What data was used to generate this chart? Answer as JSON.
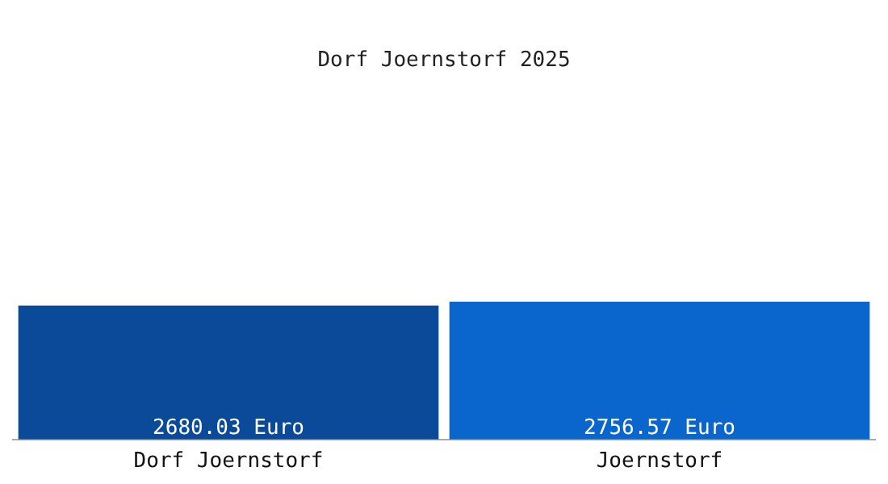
{
  "chart_data": {
    "type": "bar",
    "title": "Dorf Joernstorf 2025",
    "categories": [
      "Dorf Joernstorf",
      "Joernstorf"
    ],
    "values": [
      2680.03,
      2756.57
    ],
    "colors": [
      "#0a4a98",
      "#0a66cc"
    ],
    "value_labels": [
      "2680.03 Euro",
      "2756.57 Euro"
    ],
    "legend": false,
    "grid": false
  }
}
